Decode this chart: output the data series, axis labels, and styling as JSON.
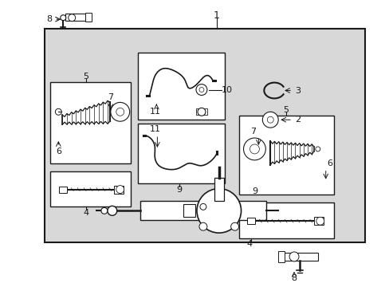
{
  "bg_color": "#ffffff",
  "box_bg": "#d8d8d8",
  "line_color": "#1a1a1a",
  "fig_width": 4.89,
  "fig_height": 3.6,
  "dpi": 100
}
